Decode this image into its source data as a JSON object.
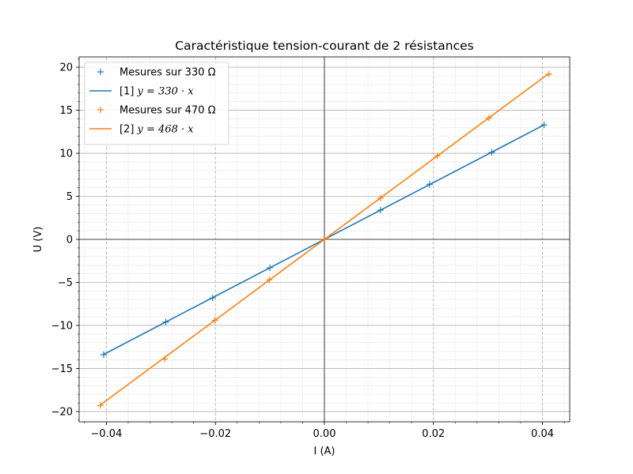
{
  "chart_data": {
    "type": "line",
    "title": "Caractéristique tension-courant de 2 résistances",
    "xlabel": "I (A)",
    "ylabel": "U (V)",
    "xlim": [
      -0.045,
      0.045
    ],
    "ylim": [
      -21.2,
      21.2
    ],
    "xticks": [
      -0.04,
      -0.02,
      0.0,
      0.02,
      0.04
    ],
    "xtick_labels": [
      "−0.04",
      "−0.02",
      "0.00",
      "0.02",
      "0.04"
    ],
    "yticks": [
      -20,
      -15,
      -10,
      -5,
      0,
      5,
      10,
      15,
      20
    ],
    "ytick_labels": [
      "−20",
      "−15",
      "−10",
      "−5",
      "0",
      "5",
      "10",
      "15",
      "20"
    ],
    "grid": true,
    "minor_grid": true,
    "zero_lines": true,
    "legend_position": "upper-left",
    "series": [
      {
        "name": "Mesures sur 330 Ω",
        "kind": "scatter",
        "marker": "+",
        "color": "#1f77b4",
        "x": [
          -0.0405,
          -0.0291,
          -0.0205,
          -0.01,
          0.0,
          0.0103,
          0.0193,
          0.0307,
          0.0403
        ],
        "y": [
          -13.4,
          -9.6,
          -6.8,
          -3.3,
          0.0,
          3.4,
          6.4,
          10.1,
          13.3
        ]
      },
      {
        "name": "[1]  y = 330 · x",
        "legend_prefix": "[1]  ",
        "legend_math": "y = 330 · x",
        "kind": "line",
        "color": "#1f77b4",
        "slope": 330,
        "x": [
          -0.0405,
          0.0403
        ]
      },
      {
        "name": "Mesures sur 470 Ω",
        "kind": "scatter",
        "marker": "+",
        "color": "#ff7f0e",
        "x": [
          -0.0411,
          -0.0293,
          -0.0201,
          -0.0101,
          0.0,
          0.0103,
          0.0207,
          0.0302,
          0.0412
        ],
        "y": [
          -19.3,
          -13.9,
          -9.4,
          -4.7,
          0.0,
          4.8,
          9.7,
          14.1,
          19.2
        ]
      },
      {
        "name": "[2]  y = 468 · x",
        "legend_prefix": "[2]  ",
        "legend_math": "y = 468 · x",
        "kind": "line",
        "color": "#ff7f0e",
        "slope": 468,
        "x": [
          -0.0411,
          0.0412
        ]
      }
    ]
  }
}
